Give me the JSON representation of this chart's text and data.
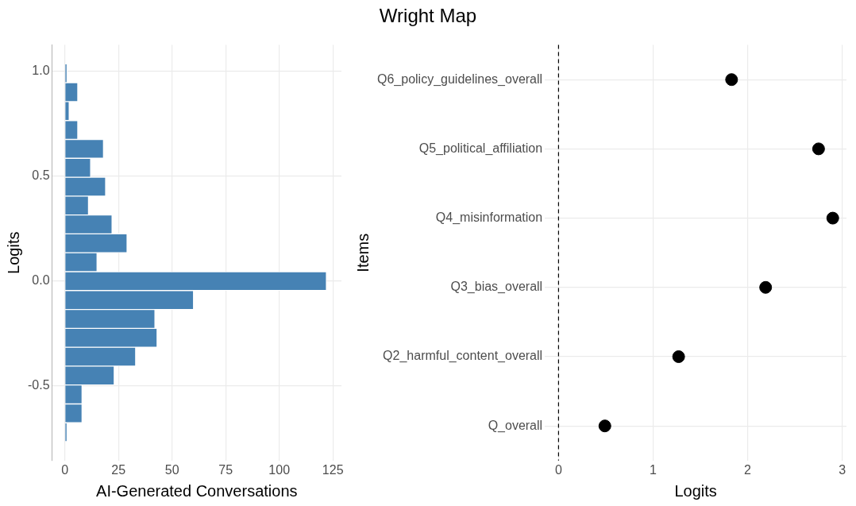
{
  "chart_data": [
    {
      "type": "histogram",
      "orientation": "horizontal",
      "xlabel": "AI-Generated Conversations",
      "ylabel": "Logits",
      "color": "#4682b4",
      "bins": [
        -0.765,
        -0.675,
        -0.585,
        -0.495,
        -0.405,
        -0.315,
        -0.225,
        -0.135,
        -0.045,
        0.045,
        0.135,
        0.225,
        0.315,
        0.405,
        0.495,
        0.585,
        0.675,
        0.765,
        0.855,
        0.945,
        1.035
      ],
      "values": [
        1,
        8,
        8,
        23,
        33,
        43,
        42,
        60,
        122,
        15,
        29,
        22,
        11,
        19,
        12,
        18,
        6,
        2,
        6,
        1
      ],
      "xlim": [
        -6,
        129
      ],
      "xticks": [
        0,
        25,
        50,
        75,
        100,
        125
      ],
      "ylim": [
        -0.855,
        1.125
      ],
      "yticks": [
        {
          "value": -0.5,
          "label": "-0.5"
        },
        {
          "value": 0,
          "label": "0.0"
        },
        {
          "value": 0.5,
          "label": "0.5"
        },
        {
          "value": 1,
          "label": "1.0"
        }
      ],
      "grid": true
    },
    {
      "type": "scatter",
      "title": "Wright Map",
      "orientation": "horizontal",
      "xlabel": "Logits",
      "ylabel": "Items",
      "color": "#000000",
      "marker": "circle",
      "categories": [
        "Q6_policy_guidelines_overall",
        "Q5_political_affiliation",
        "Q4_misinformation",
        "Q3_bias_overall",
        "Q2_harmful_content_overall",
        "Q_overall"
      ],
      "values": [
        1.83,
        2.75,
        2.9,
        2.19,
        1.27,
        0.49
      ],
      "xlim": [
        -0.145,
        3.045
      ],
      "xticks": [
        0,
        1,
        2,
        3
      ],
      "ref_lines": [
        {
          "axis": "x",
          "value": 0,
          "color": "#000000",
          "line_style": "dashed"
        }
      ],
      "grid": true
    }
  ]
}
